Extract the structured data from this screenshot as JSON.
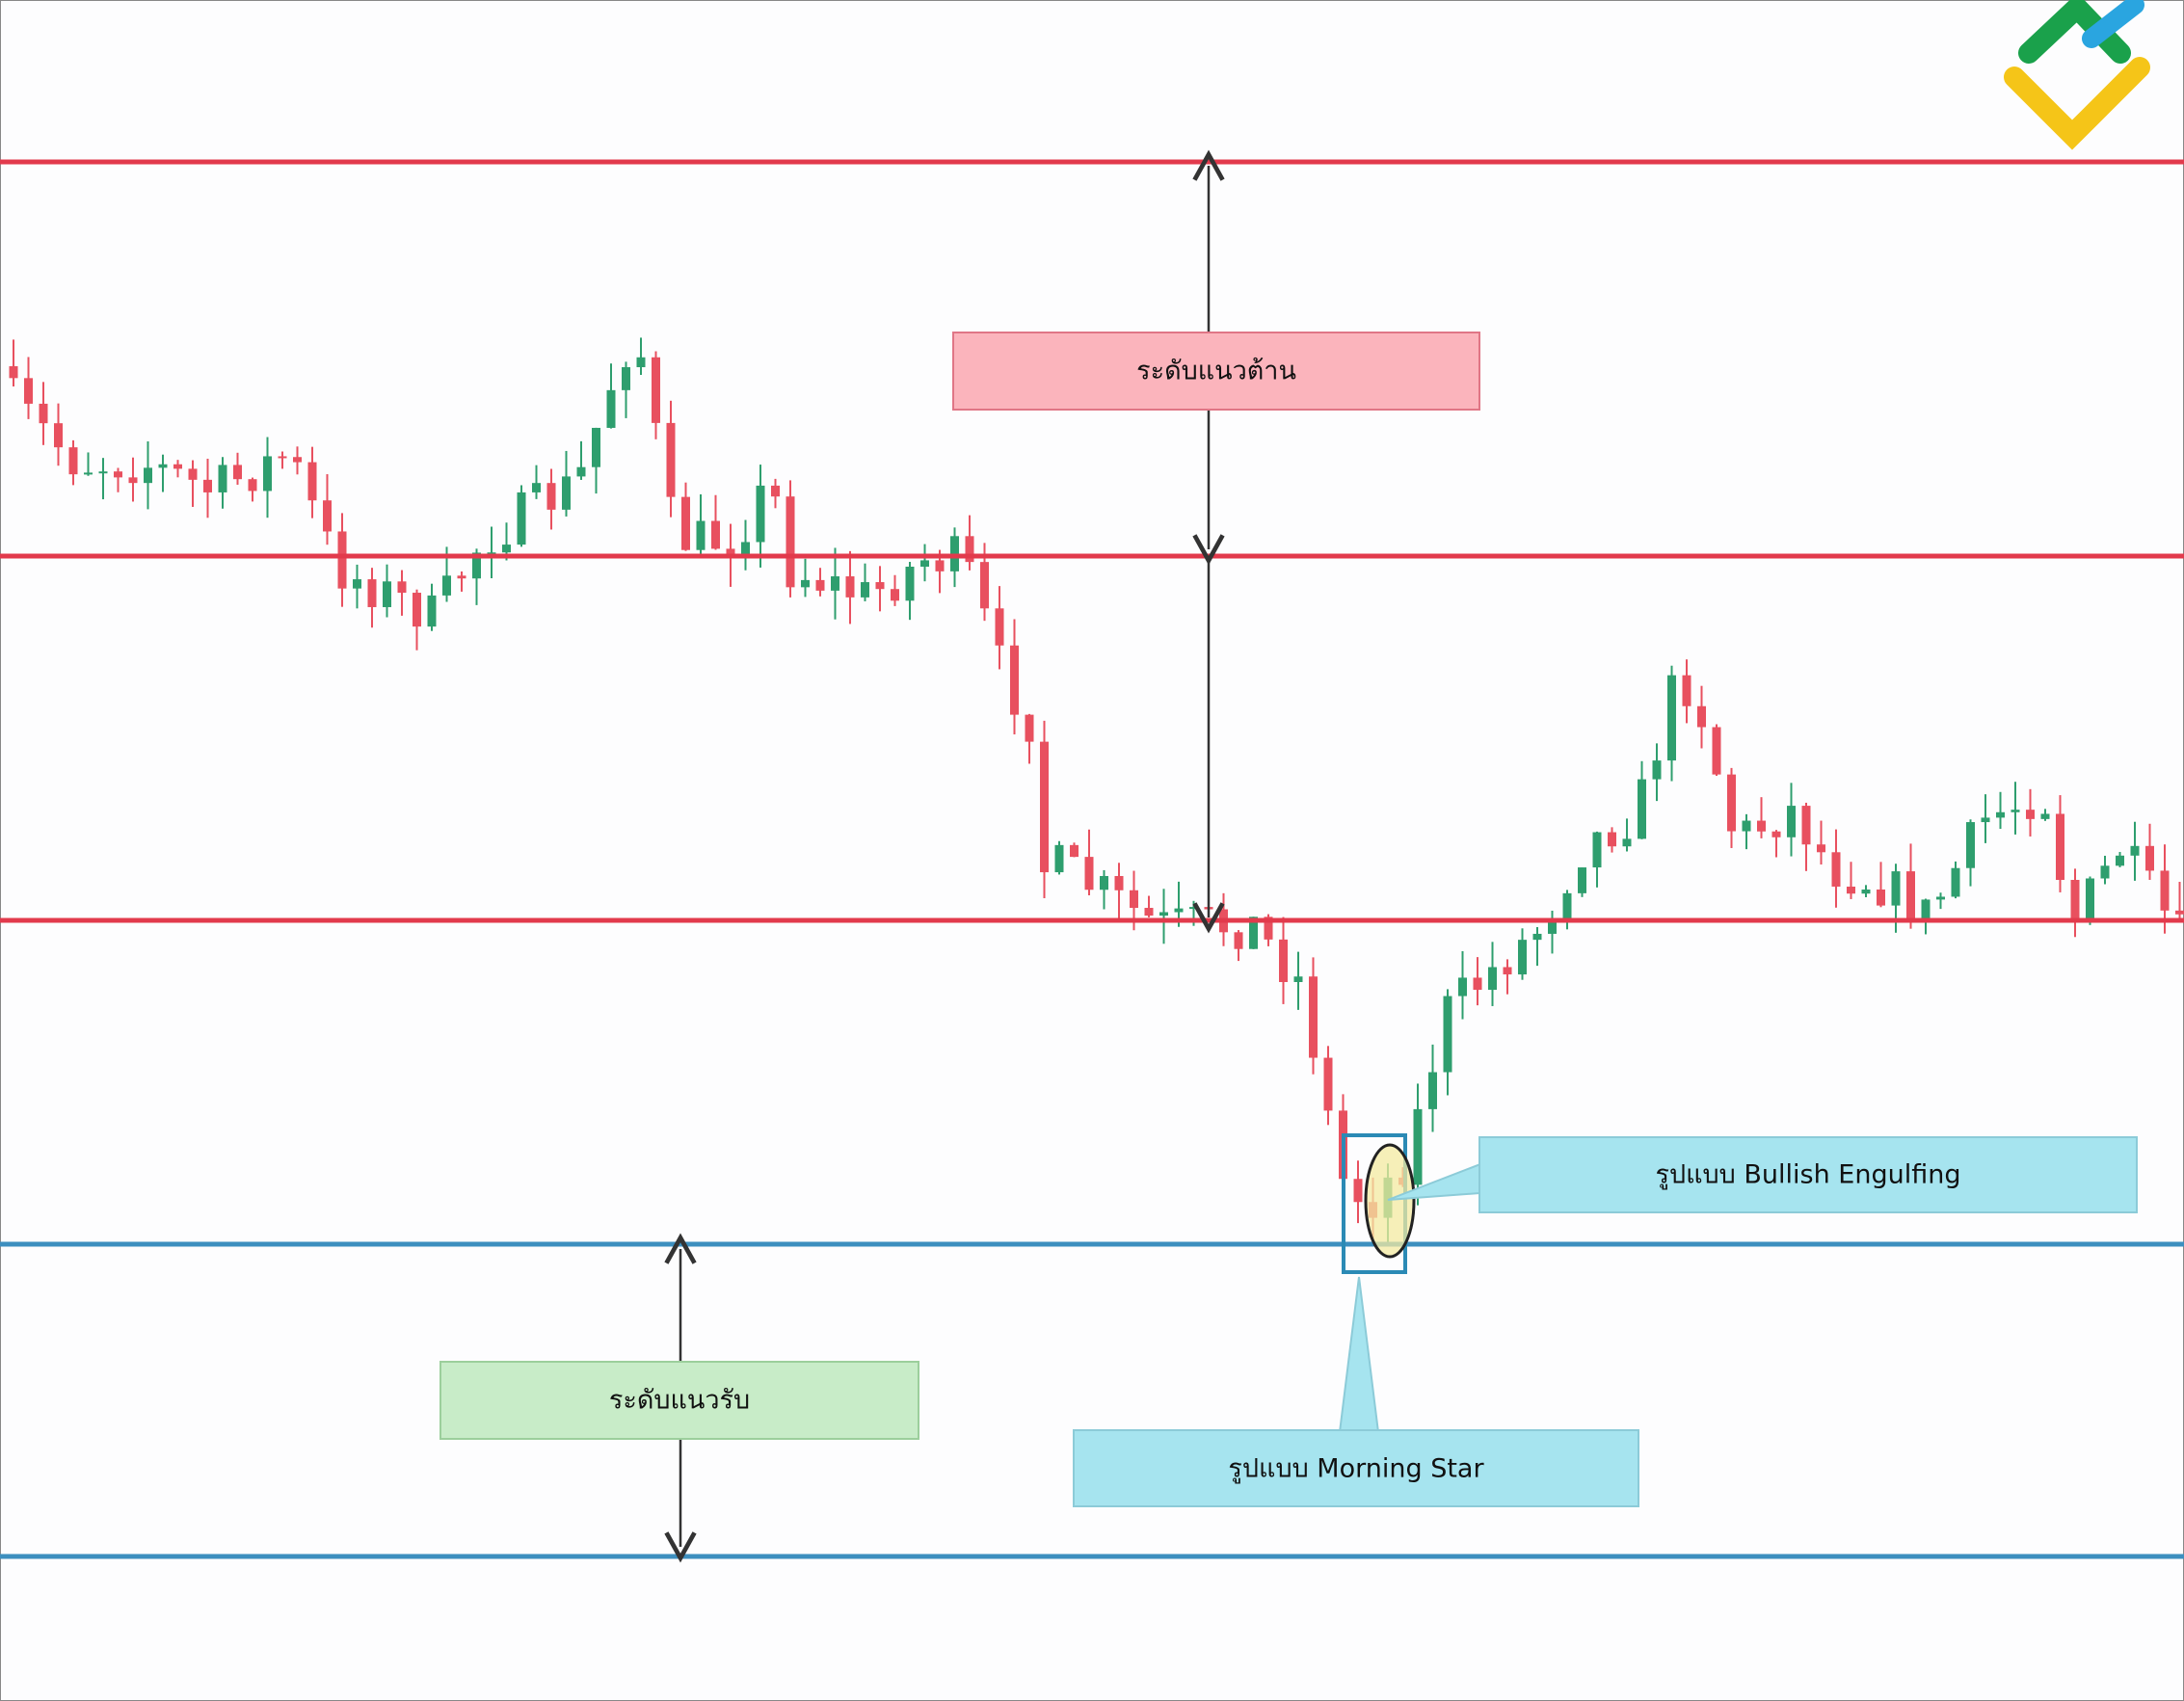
{
  "annotations": {
    "resistance": "ระดับแนวต้าน",
    "support": "ระดับแนวรับ",
    "bullish_engulfing": "รูปแบบ Bullish Engulfing",
    "morning_star": "รูปแบบ Morning Star"
  }
}
